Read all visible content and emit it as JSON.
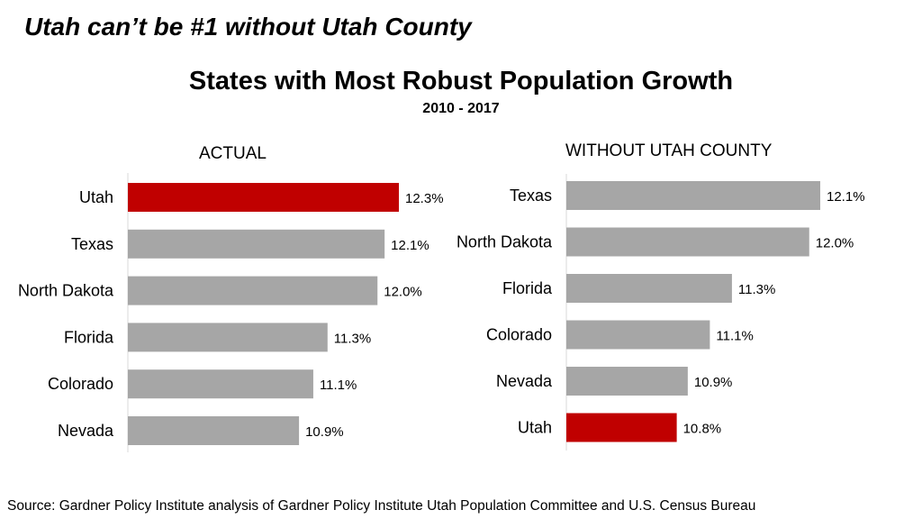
{
  "header": {
    "headline": "Utah can’t be #1 without Utah County"
  },
  "chart_data": [
    {
      "type": "bar",
      "orientation": "horizontal",
      "title": "States with Most Robust Population Growth",
      "subtitle": "2010 - 2017",
      "panel_title": "ACTUAL",
      "categories": [
        "Utah",
        "Texas",
        "North Dakota",
        "Florida",
        "Colorado",
        "Nevada"
      ],
      "values": [
        12.3,
        12.1,
        12.0,
        11.3,
        11.1,
        10.9
      ],
      "labels": [
        "12.3%",
        "12.1%",
        "12.0%",
        "11.3%",
        "11.1%",
        "10.9%"
      ],
      "highlight": "Utah",
      "xlim": [
        8.5,
        12.3
      ]
    },
    {
      "type": "bar",
      "orientation": "horizontal",
      "panel_title": "WITHOUT UTAH COUNTY",
      "categories": [
        "Texas",
        "North Dakota",
        "Florida",
        "Colorado",
        "Nevada",
        "Utah"
      ],
      "values": [
        12.1,
        12.0,
        11.3,
        11.1,
        10.9,
        10.8
      ],
      "labels": [
        "12.1%",
        "12.0%",
        "11.3%",
        "11.1%",
        "10.9%",
        "10.8%"
      ],
      "highlight": "Utah",
      "xlim": [
        9.8,
        12.1
      ]
    }
  ],
  "colors": {
    "highlight": "#c00000",
    "bar": "#a6a6a6",
    "axis": "#d9d9d9"
  },
  "footer": {
    "source": "Source:  Gardner Policy Institute analysis of Gardner Policy Institute Utah Population Committee and U.S. Census Bureau"
  }
}
